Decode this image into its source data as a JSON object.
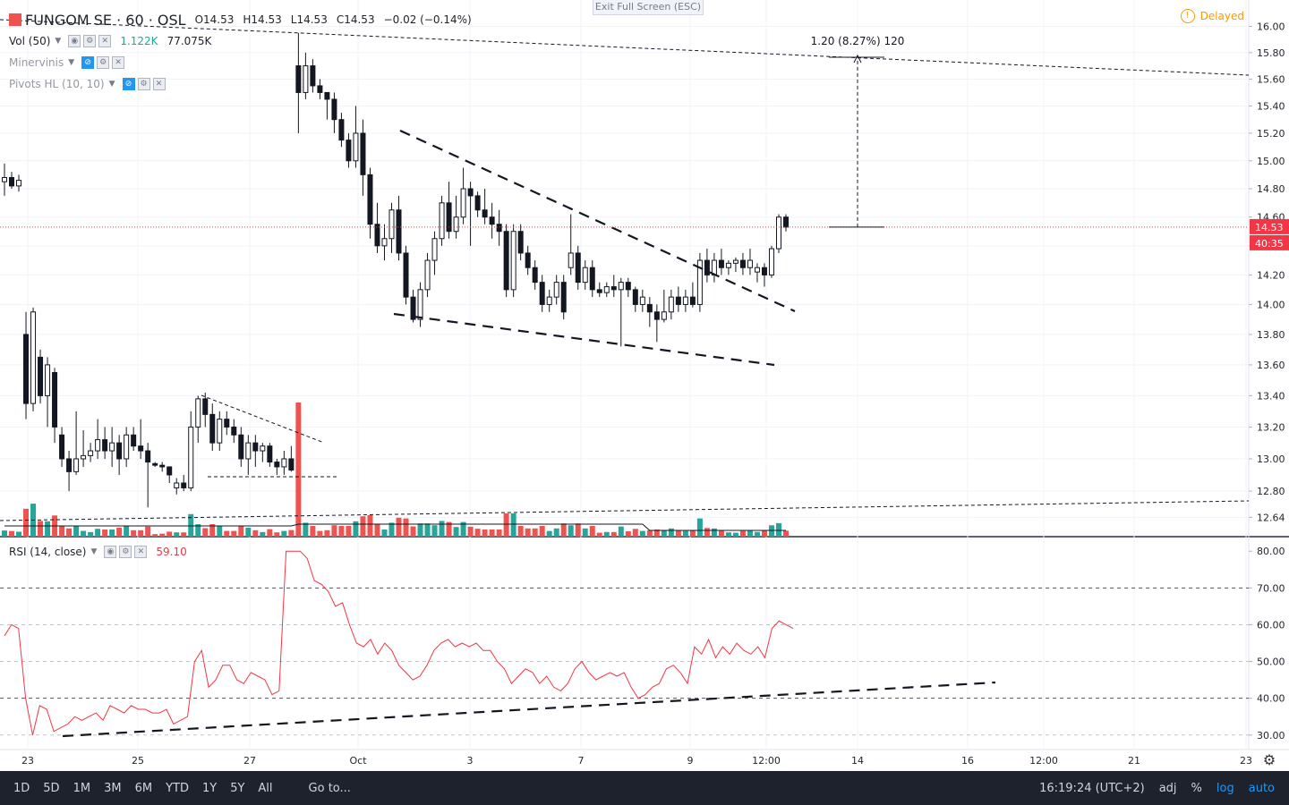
{
  "header": {
    "symbol": "FUNGOM SE · 60 · OSL",
    "open_label": "O",
    "open": "14.53",
    "high_label": "H",
    "high": "14.53",
    "low_label": "L",
    "low": "14.53",
    "close_label": "C",
    "close": "14.53",
    "change": "−0.02 (−0.14%)"
  },
  "indicators": [
    {
      "name": "Vol (50)",
      "v1": "1.122K",
      "v2": "77.075K"
    },
    {
      "name": "Minervinis"
    },
    {
      "name": "Pivots HL (10, 10)"
    }
  ],
  "banner": "Exit Full Screen (ESC)",
  "delayed": {
    "label": "Delayed",
    "icon": "clock-icon"
  },
  "price_tag": "14.53",
  "countdown_tag": "40:35",
  "measure_label": "1.20 (8.27%) 120",
  "rsi": {
    "name": "RSI (14, close)",
    "value": "59.10"
  },
  "toolbar": {
    "timeframes": [
      "1D",
      "5D",
      "1M",
      "3M",
      "6M",
      "YTD",
      "1Y",
      "5Y",
      "All"
    ],
    "goto": "Go to...",
    "time": "16:19:24 (UTC+2)",
    "adj": "adj",
    "percent": "%",
    "log": "log",
    "auto": "auto"
  },
  "colors": {
    "up": "#26a69a",
    "down": "#ef5350",
    "rsi": "#f23645",
    "price_line": "#f23645",
    "accent": "#2196f3",
    "delayed": "#ff9800"
  },
  "chart_data": [
    {
      "type": "candlestick",
      "title": "FUNGOM SE 60 OSL",
      "ylim": [
        12.55,
        16.1
      ],
      "y_ticks": [
        "16.00",
        "15.80",
        "15.60",
        "15.40",
        "15.20",
        "15.00",
        "14.80",
        "14.60",
        "14.40",
        "14.20",
        "14.00",
        "13.80",
        "13.60",
        "13.40",
        "13.20",
        "13.00",
        "12.80",
        "12.64"
      ],
      "x_ticks": [
        "23",
        "25",
        "27",
        "Oct",
        "3",
        "7",
        "9",
        "12:00",
        "14",
        "16",
        "12:00",
        "21",
        "23"
      ],
      "candles": [
        {
          "o": 14.85,
          "h": 14.98,
          "l": 14.75,
          "c": 14.88
        },
        {
          "o": 14.88,
          "h": 14.92,
          "l": 14.8,
          "c": 14.82
        },
        {
          "o": 14.82,
          "h": 14.9,
          "l": 14.78,
          "c": 14.86
        },
        {
          "o": 13.8,
          "h": 13.95,
          "l": 13.25,
          "c": 13.35
        },
        {
          "o": 13.35,
          "h": 13.98,
          "l": 13.3,
          "c": 13.95
        },
        {
          "o": 13.65,
          "h": 13.7,
          "l": 13.35,
          "c": 13.4
        },
        {
          "o": 13.4,
          "h": 13.65,
          "l": 13.2,
          "c": 13.6
        },
        {
          "o": 13.55,
          "h": 13.58,
          "l": 13.1,
          "c": 13.2
        },
        {
          "o": 13.15,
          "h": 13.2,
          "l": 12.95,
          "c": 13.0
        },
        {
          "o": 13.0,
          "h": 13.05,
          "l": 12.8,
          "c": 12.92
        },
        {
          "o": 12.92,
          "h": 13.3,
          "l": 12.9,
          "c": 13.0
        },
        {
          "o": 13.0,
          "h": 13.18,
          "l": 12.95,
          "c": 13.02
        },
        {
          "o": 13.02,
          "h": 13.1,
          "l": 12.98,
          "c": 13.05
        },
        {
          "o": 13.05,
          "h": 13.25,
          "l": 13.0,
          "c": 13.12
        },
        {
          "o": 13.12,
          "h": 13.2,
          "l": 13.0,
          "c": 13.05
        },
        {
          "o": 13.05,
          "h": 13.2,
          "l": 12.95,
          "c": 13.1
        },
        {
          "o": 13.1,
          "h": 13.15,
          "l": 12.9,
          "c": 13.0
        },
        {
          "o": 13.0,
          "h": 13.2,
          "l": 12.95,
          "c": 13.15
        },
        {
          "o": 13.15,
          "h": 13.2,
          "l": 13.05,
          "c": 13.08
        },
        {
          "o": 13.08,
          "h": 13.25,
          "l": 13.0,
          "c": 13.05
        },
        {
          "o": 13.05,
          "h": 13.1,
          "l": 12.7,
          "c": 12.98
        },
        {
          "o": 12.97,
          "h": 12.98,
          "l": 12.95,
          "c": 12.96
        },
        {
          "o": 12.96,
          "h": 12.98,
          "l": 12.92,
          "c": 12.95
        },
        {
          "o": 12.95,
          "h": 12.95,
          "l": 12.85,
          "c": 12.9
        },
        {
          "o": 12.82,
          "h": 12.88,
          "l": 12.78,
          "c": 12.85
        },
        {
          "o": 12.85,
          "h": 12.9,
          "l": 12.8,
          "c": 12.82
        },
        {
          "o": 12.82,
          "h": 13.3,
          "l": 12.8,
          "c": 13.2
        },
        {
          "o": 13.2,
          "h": 13.4,
          "l": 13.1,
          "c": 13.38
        },
        {
          "o": 13.38,
          "h": 13.42,
          "l": 13.2,
          "c": 13.28
        },
        {
          "o": 13.28,
          "h": 13.35,
          "l": 13.05,
          "c": 13.1
        },
        {
          "o": 13.1,
          "h": 13.3,
          "l": 13.05,
          "c": 13.25
        },
        {
          "o": 13.25,
          "h": 13.3,
          "l": 13.15,
          "c": 13.2
        },
        {
          "o": 13.2,
          "h": 13.25,
          "l": 13.1,
          "c": 13.15
        },
        {
          "o": 13.15,
          "h": 13.2,
          "l": 12.95,
          "c": 13.0
        },
        {
          "o": 13.0,
          "h": 13.15,
          "l": 12.9,
          "c": 13.1
        },
        {
          "o": 13.1,
          "h": 13.15,
          "l": 12.95,
          "c": 13.05
        },
        {
          "o": 13.05,
          "h": 13.1,
          "l": 12.98,
          "c": 13.08
        },
        {
          "o": 13.08,
          "h": 13.1,
          "l": 12.95,
          "c": 12.98
        },
        {
          "o": 12.98,
          "h": 13.0,
          "l": 12.9,
          "c": 12.95
        },
        {
          "o": 12.95,
          "h": 13.05,
          "l": 12.9,
          "c": 13.0
        },
        {
          "o": 13.0,
          "h": 13.08,
          "l": 12.92,
          "c": 12.93
        },
        {
          "o": 15.7,
          "h": 15.95,
          "l": 15.2,
          "c": 15.5
        },
        {
          "o": 15.5,
          "h": 15.8,
          "l": 15.45,
          "c": 15.7
        },
        {
          "o": 15.7,
          "h": 15.75,
          "l": 15.5,
          "c": 15.55
        },
        {
          "o": 15.55,
          "h": 15.6,
          "l": 15.45,
          "c": 15.5
        },
        {
          "o": 15.5,
          "h": 15.5,
          "l": 15.3,
          "c": 15.45
        },
        {
          "o": 15.45,
          "h": 15.5,
          "l": 15.2,
          "c": 15.3
        },
        {
          "o": 15.3,
          "h": 15.35,
          "l": 15.1,
          "c": 15.15
        },
        {
          "o": 15.15,
          "h": 15.2,
          "l": 14.95,
          "c": 15.0
        },
        {
          "o": 15.0,
          "h": 15.4,
          "l": 14.95,
          "c": 15.2
        },
        {
          "o": 15.2,
          "h": 15.3,
          "l": 14.75,
          "c": 14.9
        },
        {
          "o": 14.9,
          "h": 14.95,
          "l": 14.45,
          "c": 14.55
        },
        {
          "o": 14.55,
          "h": 14.7,
          "l": 14.35,
          "c": 14.4
        },
        {
          "o": 14.4,
          "h": 14.55,
          "l": 14.3,
          "c": 14.45
        },
        {
          "o": 14.45,
          "h": 14.7,
          "l": 14.35,
          "c": 14.65
        },
        {
          "o": 14.65,
          "h": 14.75,
          "l": 14.3,
          "c": 14.35
        },
        {
          "o": 14.35,
          "h": 14.4,
          "l": 14.0,
          "c": 14.05
        },
        {
          "o": 14.05,
          "h": 14.1,
          "l": 13.88,
          "c": 13.9
        },
        {
          "o": 13.9,
          "h": 14.15,
          "l": 13.85,
          "c": 14.1
        },
        {
          "o": 14.1,
          "h": 14.35,
          "l": 14.05,
          "c": 14.3
        },
        {
          "o": 14.3,
          "h": 14.5,
          "l": 14.2,
          "c": 14.45
        },
        {
          "o": 14.45,
          "h": 14.75,
          "l": 14.4,
          "c": 14.7
        },
        {
          "o": 14.7,
          "h": 14.85,
          "l": 14.45,
          "c": 14.5
        },
        {
          "o": 14.5,
          "h": 14.75,
          "l": 14.45,
          "c": 14.6
        },
        {
          "o": 14.6,
          "h": 14.95,
          "l": 14.55,
          "c": 14.8
        },
        {
          "o": 14.8,
          "h": 14.85,
          "l": 14.4,
          "c": 14.75
        },
        {
          "o": 14.75,
          "h": 14.78,
          "l": 14.6,
          "c": 14.65
        },
        {
          "o": 14.65,
          "h": 14.8,
          "l": 14.55,
          "c": 14.6
        },
        {
          "o": 14.6,
          "h": 14.7,
          "l": 14.45,
          "c": 14.55
        },
        {
          "o": 14.55,
          "h": 14.65,
          "l": 14.4,
          "c": 14.5
        },
        {
          "o": 14.5,
          "h": 14.55,
          "l": 14.05,
          "c": 14.1
        },
        {
          "o": 14.1,
          "h": 14.55,
          "l": 14.05,
          "c": 14.5
        },
        {
          "o": 14.5,
          "h": 14.55,
          "l": 14.3,
          "c": 14.35
        },
        {
          "o": 14.35,
          "h": 14.4,
          "l": 14.2,
          "c": 14.25
        },
        {
          "o": 14.25,
          "h": 14.3,
          "l": 14.1,
          "c": 14.15
        },
        {
          "o": 14.15,
          "h": 14.2,
          "l": 13.95,
          "c": 14.0
        },
        {
          "o": 14.0,
          "h": 14.1,
          "l": 13.95,
          "c": 14.05
        },
        {
          "o": 14.05,
          "h": 14.2,
          "l": 14.0,
          "c": 14.15
        },
        {
          "o": 14.15,
          "h": 14.2,
          "l": 13.9,
          "c": 13.95
        },
        {
          "o": 14.25,
          "h": 14.62,
          "l": 14.2,
          "c": 14.35
        },
        {
          "o": 14.35,
          "h": 14.4,
          "l": 14.1,
          "c": 14.15
        },
        {
          "o": 14.15,
          "h": 14.3,
          "l": 14.1,
          "c": 14.25
        },
        {
          "o": 14.25,
          "h": 14.3,
          "l": 14.05,
          "c": 14.1
        },
        {
          "o": 14.1,
          "h": 14.15,
          "l": 14.05,
          "c": 14.08
        },
        {
          "o": 14.08,
          "h": 14.15,
          "l": 14.05,
          "c": 14.12
        },
        {
          "o": 14.12,
          "h": 14.2,
          "l": 14.05,
          "c": 14.1
        },
        {
          "o": 14.1,
          "h": 14.18,
          "l": 13.72,
          "c": 14.15
        },
        {
          "o": 14.15,
          "h": 14.18,
          "l": 14.05,
          "c": 14.1
        },
        {
          "o": 14.1,
          "h": 14.12,
          "l": 13.95,
          "c": 14.0
        },
        {
          "o": 14.0,
          "h": 14.1,
          "l": 13.95,
          "c": 14.05
        },
        {
          "o": 14.0,
          "h": 14.05,
          "l": 13.85,
          "c": 13.95
        },
        {
          "o": 13.95,
          "h": 14.0,
          "l": 13.75,
          "c": 13.9
        },
        {
          "o": 13.9,
          "h": 14.1,
          "l": 13.88,
          "c": 13.95
        },
        {
          "o": 13.95,
          "h": 14.1,
          "l": 13.9,
          "c": 14.05
        },
        {
          "o": 14.05,
          "h": 14.12,
          "l": 13.95,
          "c": 14.0
        },
        {
          "o": 14.0,
          "h": 14.1,
          "l": 13.95,
          "c": 14.05
        },
        {
          "o": 14.05,
          "h": 14.15,
          "l": 13.98,
          "c": 14.0
        },
        {
          "o": 14.0,
          "h": 14.35,
          "l": 13.95,
          "c": 14.3
        },
        {
          "o": 14.3,
          "h": 14.38,
          "l": 14.15,
          "c": 14.2
        },
        {
          "o": 14.2,
          "h": 14.35,
          "l": 14.15,
          "c": 14.3
        },
        {
          "o": 14.3,
          "h": 14.38,
          "l": 14.2,
          "c": 14.25
        },
        {
          "o": 14.25,
          "h": 14.3,
          "l": 14.2,
          "c": 14.28
        },
        {
          "o": 14.28,
          "h": 14.32,
          "l": 14.22,
          "c": 14.3
        },
        {
          "o": 14.3,
          "h": 14.35,
          "l": 14.2,
          "c": 14.25
        },
        {
          "o": 14.25,
          "h": 14.38,
          "l": 14.2,
          "c": 14.3
        },
        {
          "o": 14.22,
          "h": 14.28,
          "l": 14.15,
          "c": 14.25
        },
        {
          "o": 14.25,
          "h": 14.28,
          "l": 14.12,
          "c": 14.2
        },
        {
          "o": 14.2,
          "h": 14.4,
          "l": 14.18,
          "c": 14.38
        },
        {
          "o": 14.38,
          "h": 14.62,
          "l": 14.35,
          "c": 14.6
        },
        {
          "o": 14.6,
          "h": 14.62,
          "l": 14.5,
          "c": 14.53
        }
      ],
      "volume_colors_hint": "up green / down red"
    },
    {
      "type": "line",
      "title": "RSI (14, close)",
      "ylim": [
        28,
        82
      ],
      "y_ticks": [
        "80.00",
        "70.00",
        "60.00",
        "50.00",
        "40.00",
        "30.00"
      ],
      "hlines": [
        30,
        40,
        50,
        60,
        70
      ],
      "series": [
        {
          "values": [
            57,
            60,
            59,
            40,
            30,
            38,
            37,
            31,
            32,
            33,
            35,
            34,
            35,
            36,
            34,
            38,
            37,
            36,
            38,
            37,
            37,
            36,
            36,
            37,
            33,
            34,
            35,
            50,
            53,
            43,
            45,
            49,
            49,
            45,
            44,
            47,
            46,
            45,
            41,
            42,
            80,
            80,
            80,
            78,
            72,
            71,
            69,
            65,
            66,
            60,
            55,
            54,
            56,
            52,
            55,
            53,
            49,
            47,
            45,
            46,
            49,
            53,
            55,
            56,
            54,
            55,
            54,
            55,
            53,
            53,
            50,
            48,
            44,
            46,
            48,
            47,
            44,
            46,
            43,
            42,
            44,
            48,
            50,
            47,
            45,
            46,
            47,
            46,
            47,
            43,
            40,
            41,
            43,
            44,
            48,
            49,
            47,
            44,
            54,
            52,
            56,
            51,
            54,
            52,
            55,
            53,
            52,
            54,
            51,
            59,
            61,
            60,
            59
          ]
        }
      ]
    }
  ]
}
